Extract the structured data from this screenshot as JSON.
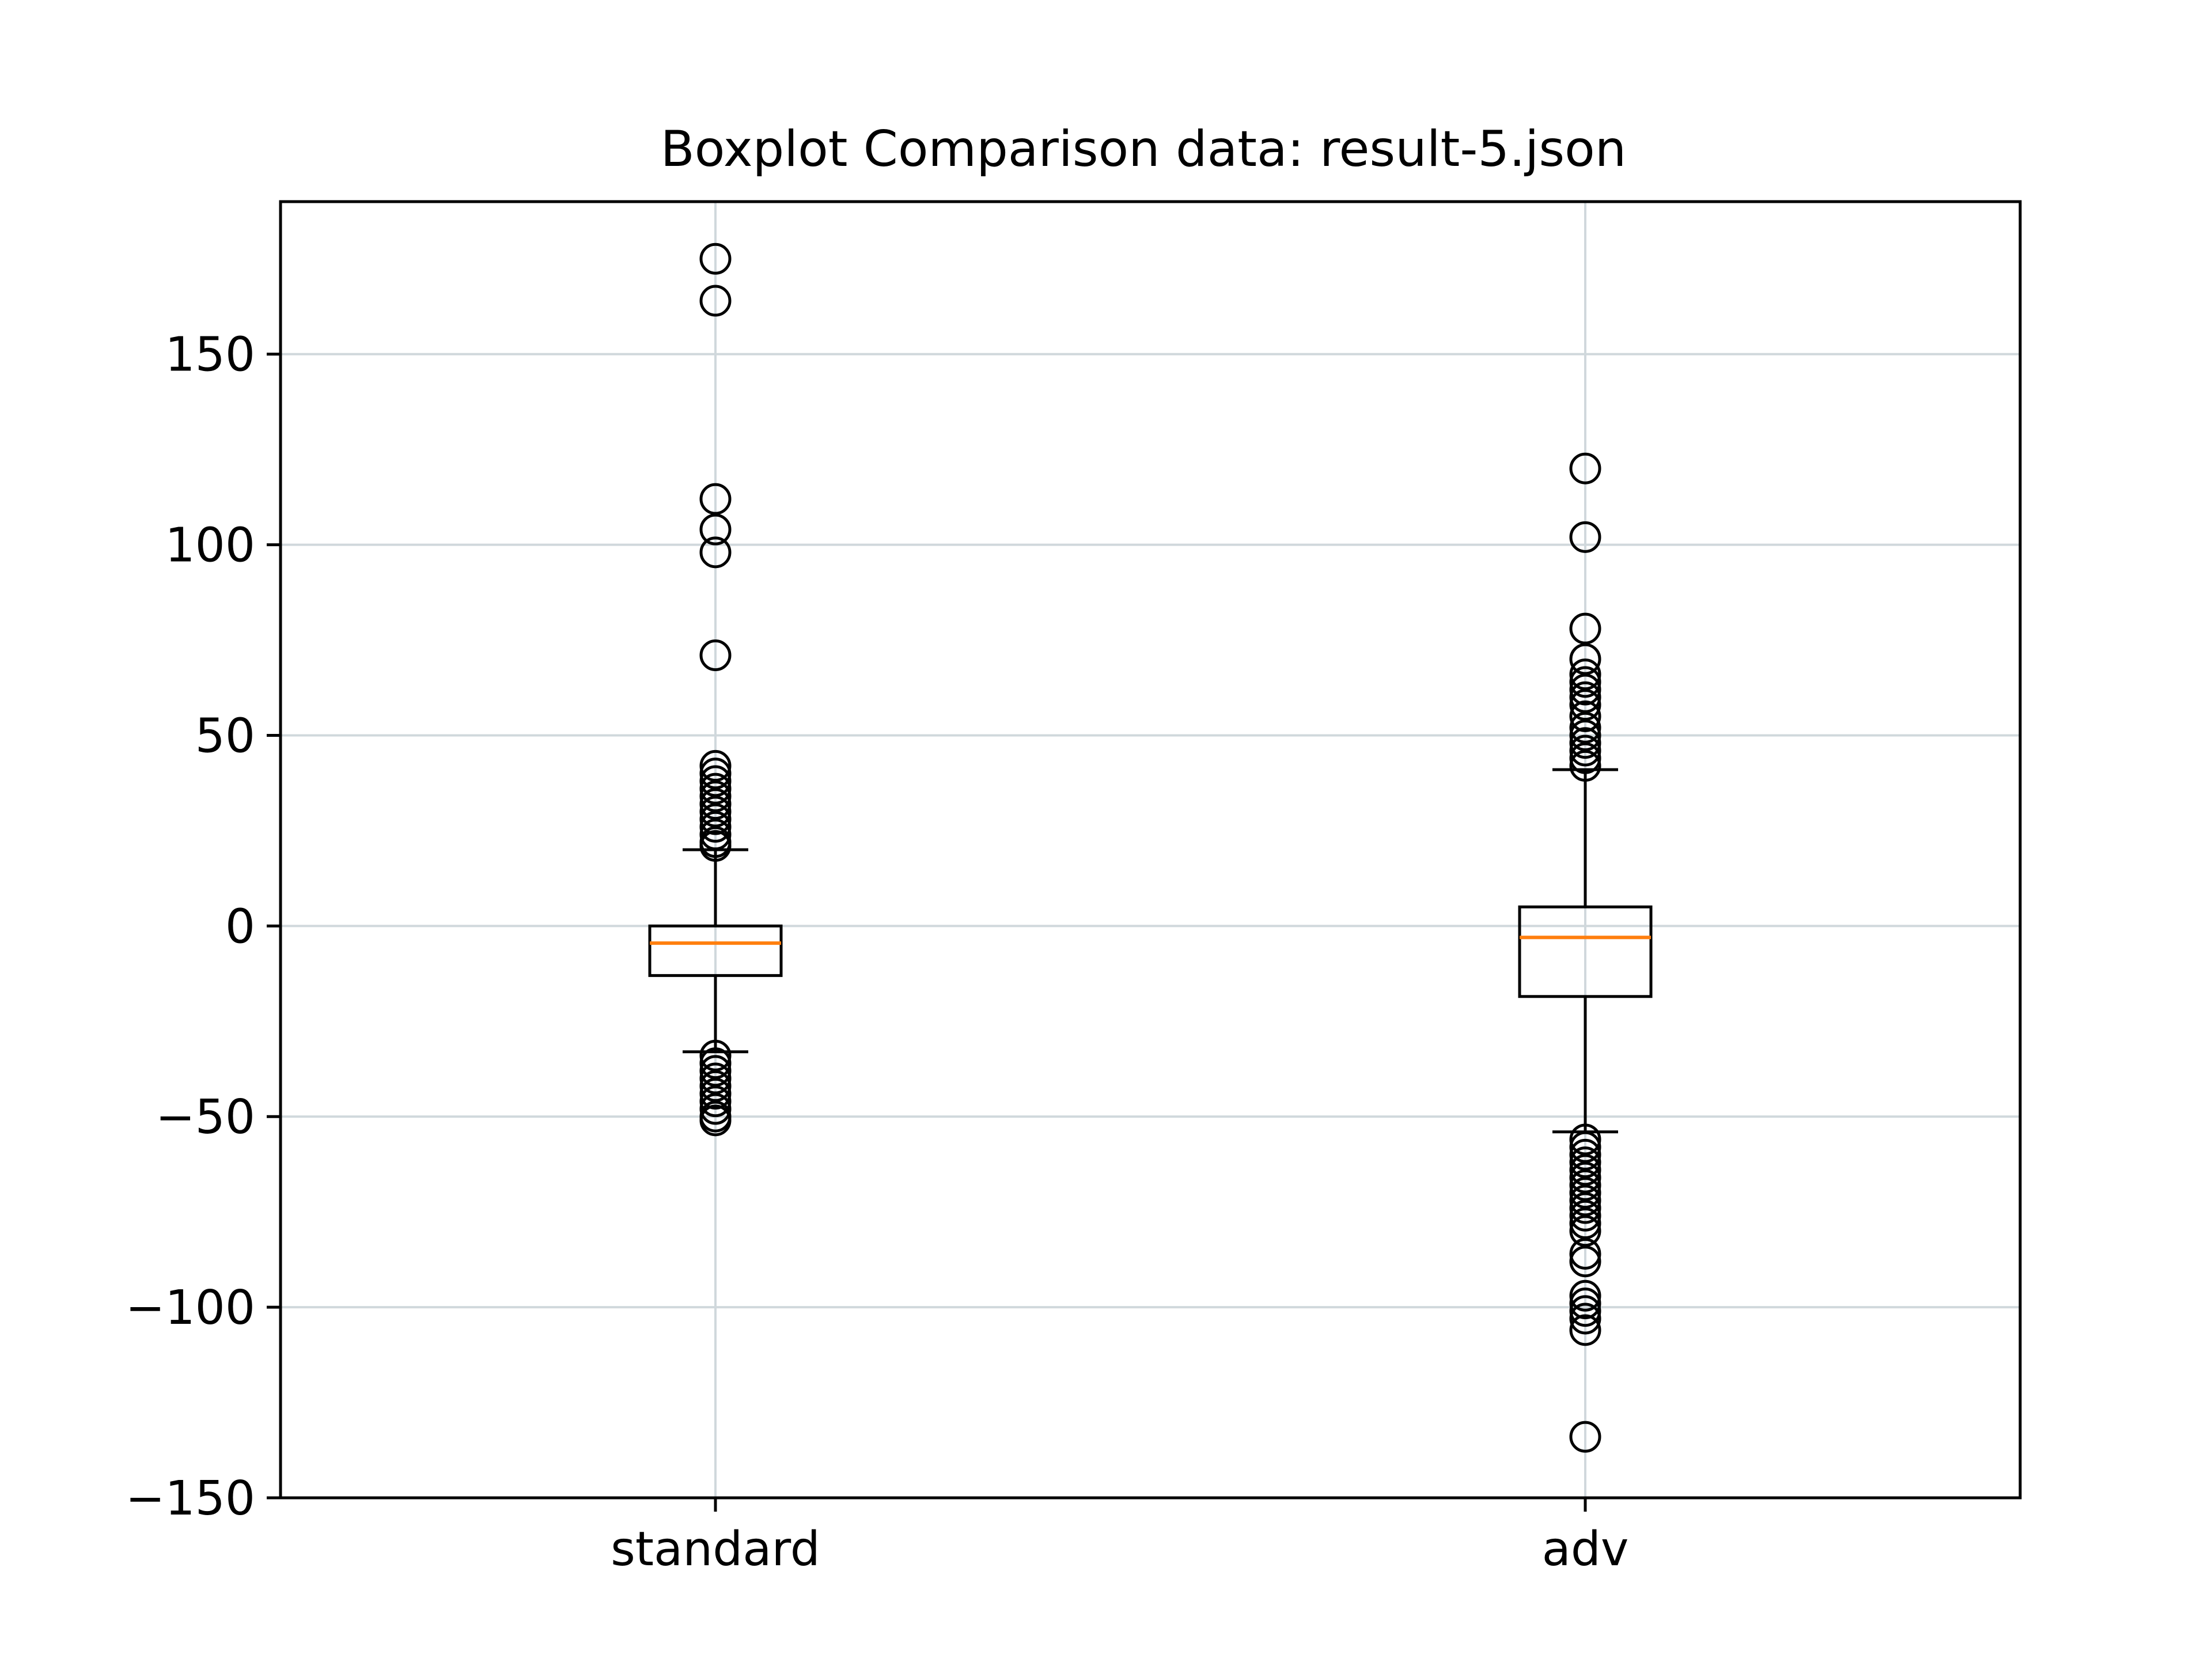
{
  "chart_data": {
    "type": "box",
    "title": "Boxplot Comparison data: result-5.json",
    "xlabel": "",
    "ylabel": "",
    "ylim": [
      -150,
      190
    ],
    "yticks": [
      -150,
      -100,
      -50,
      0,
      50,
      100,
      150
    ],
    "ytick_labels": [
      "−150",
      "−100",
      "−50",
      "0",
      "50",
      "100",
      "150"
    ],
    "grid": true,
    "legend": "none",
    "categories": [
      "standard",
      "adv"
    ],
    "series": [
      {
        "category": "standard",
        "whisker_low": -33,
        "q1": -13,
        "median": -4.5,
        "q3": 0,
        "whisker_high": 20,
        "outliers": [
          175,
          164,
          112,
          104,
          98,
          71,
          42,
          40,
          38,
          36,
          34,
          32,
          30,
          28,
          26,
          24,
          22,
          21,
          -34,
          -36,
          -38,
          -40,
          -42,
          -44,
          -46,
          -48,
          -50,
          -51
        ]
      },
      {
        "category": "adv",
        "whisker_low": -54,
        "q1": -18.5,
        "median": -3,
        "q3": 5,
        "whisker_high": 41,
        "outliers": [
          120,
          102,
          78,
          70,
          66,
          64,
          62,
          60,
          58,
          55,
          52,
          50,
          48,
          46,
          44,
          42,
          -56,
          -58,
          -60,
          -62,
          -64,
          -66,
          -68,
          -70,
          -72,
          -74,
          -76,
          -78,
          -80,
          -86,
          -88,
          -97,
          -99,
          -101,
          -103,
          -106,
          -134
        ]
      }
    ],
    "colors": {
      "median": "#ff7f0e",
      "box": "#000000",
      "grid": "#d0d8dc"
    }
  }
}
